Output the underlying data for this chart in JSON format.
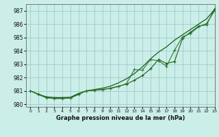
{
  "title": "Graphe pression niveau de la mer (hPa)",
  "bg_color": "#cceee8",
  "grid_color": "#99cccc",
  "line_color": "#1a5c1a",
  "line_color2": "#2d7a2d",
  "xlim": [
    -0.5,
    23
  ],
  "ylim": [
    979.8,
    987.5
  ],
  "yticks": [
    980,
    981,
    982,
    983,
    984,
    985,
    986,
    987
  ],
  "xticks": [
    0,
    1,
    2,
    3,
    4,
    5,
    6,
    7,
    8,
    9,
    10,
    11,
    12,
    13,
    14,
    15,
    16,
    17,
    18,
    19,
    20,
    21,
    22,
    23
  ],
  "line_smooth": [
    981.0,
    980.75,
    980.55,
    980.5,
    980.5,
    980.52,
    980.8,
    981.0,
    981.1,
    981.2,
    981.35,
    981.6,
    981.9,
    982.3,
    982.8,
    983.4,
    983.9,
    984.3,
    984.8,
    985.2,
    985.6,
    986.0,
    986.4,
    987.1
  ],
  "line_marked": [
    981.0,
    980.75,
    980.5,
    980.45,
    980.45,
    980.48,
    980.75,
    981.0,
    981.05,
    981.1,
    981.2,
    981.35,
    981.5,
    981.8,
    982.15,
    982.65,
    983.35,
    983.05,
    983.2,
    984.95,
    985.4,
    985.85,
    985.95,
    987.15
  ],
  "line_marked2": [
    981.0,
    980.72,
    980.48,
    980.42,
    980.42,
    980.45,
    980.72,
    981.0,
    981.05,
    981.1,
    981.18,
    981.32,
    981.55,
    982.6,
    982.55,
    983.35,
    983.25,
    982.85,
    984.05,
    985.05,
    985.3,
    985.8,
    986.05,
    987.0
  ]
}
